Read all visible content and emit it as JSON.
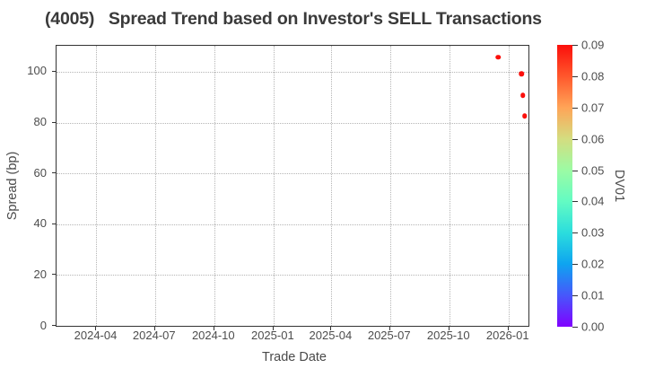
{
  "chart_data": {
    "type": "scatter",
    "title": "(4005)   Spread Trend based on Investor's SELL Transactions",
    "xlabel": "Trade Date",
    "ylabel": "Spread (bp)",
    "grid": true,
    "xlim": [
      "2024-01-30",
      "2026-02-01"
    ],
    "ylim": [
      0,
      110.2
    ],
    "x_ticks": [
      {
        "label": "2024-04",
        "date": "2024-04-01"
      },
      {
        "label": "2024-07",
        "date": "2024-07-01"
      },
      {
        "label": "2024-10",
        "date": "2024-10-01"
      },
      {
        "label": "2025-01",
        "date": "2025-01-01"
      },
      {
        "label": "2025-04",
        "date": "2025-04-01"
      },
      {
        "label": "2025-07",
        "date": "2025-07-01"
      },
      {
        "label": "2025-10",
        "date": "2025-10-01"
      },
      {
        "label": "2026-01",
        "date": "2026-01-01"
      }
    ],
    "y_ticks": [
      {
        "label": "0",
        "value": 0
      },
      {
        "label": "20",
        "value": 20
      },
      {
        "label": "40",
        "value": 40
      },
      {
        "label": "60",
        "value": 60
      },
      {
        "label": "80",
        "value": 80
      },
      {
        "label": "100",
        "value": 100
      }
    ],
    "points": [
      {
        "date": "2025-12-16",
        "spread": 105.7,
        "dv01": 0.09
      },
      {
        "date": "2026-01-21",
        "spread": 99.2,
        "dv01": 0.09
      },
      {
        "date": "2026-01-23",
        "spread": 90.6,
        "dv01": 0.09
      },
      {
        "date": "2026-01-26",
        "spread": 82.5,
        "dv01": 0.09
      }
    ],
    "colorbar": {
      "label": "DV01",
      "lim": [
        0,
        0.09
      ],
      "colormap": "rainbow",
      "ticks": [
        {
          "label": "0.00",
          "value": 0.0
        },
        {
          "label": "0.01",
          "value": 0.01
        },
        {
          "label": "0.02",
          "value": 0.02
        },
        {
          "label": "0.03",
          "value": 0.03
        },
        {
          "label": "0.04",
          "value": 0.04
        },
        {
          "label": "0.05",
          "value": 0.05
        },
        {
          "label": "0.06",
          "value": 0.06
        },
        {
          "label": "0.07",
          "value": 0.07
        },
        {
          "label": "0.08",
          "value": 0.08
        },
        {
          "label": "0.09",
          "value": 0.09
        }
      ],
      "gradient_stops": [
        {
          "value": 0.0,
          "color": "#8000ff"
        },
        {
          "value": 0.01,
          "color": "#4757fb"
        },
        {
          "value": 0.02,
          "color": "#0ea4f0"
        },
        {
          "value": 0.03,
          "color": "#2bdddd"
        },
        {
          "value": 0.04,
          "color": "#63fbc3"
        },
        {
          "value": 0.05,
          "color": "#9cfba4"
        },
        {
          "value": 0.06,
          "color": "#d4dd80"
        },
        {
          "value": 0.07,
          "color": "#ffa457"
        },
        {
          "value": 0.08,
          "color": "#ff572c"
        },
        {
          "value": 0.09,
          "color": "#fb0f0b"
        }
      ]
    },
    "colors": {
      "spine": "#333333",
      "gridline": "#b5b5b5",
      "tick_label": "#4d4d4d",
      "title": "#3a3a3a",
      "axis_label": "#4a4a4a",
      "background": "#ffffff"
    }
  }
}
